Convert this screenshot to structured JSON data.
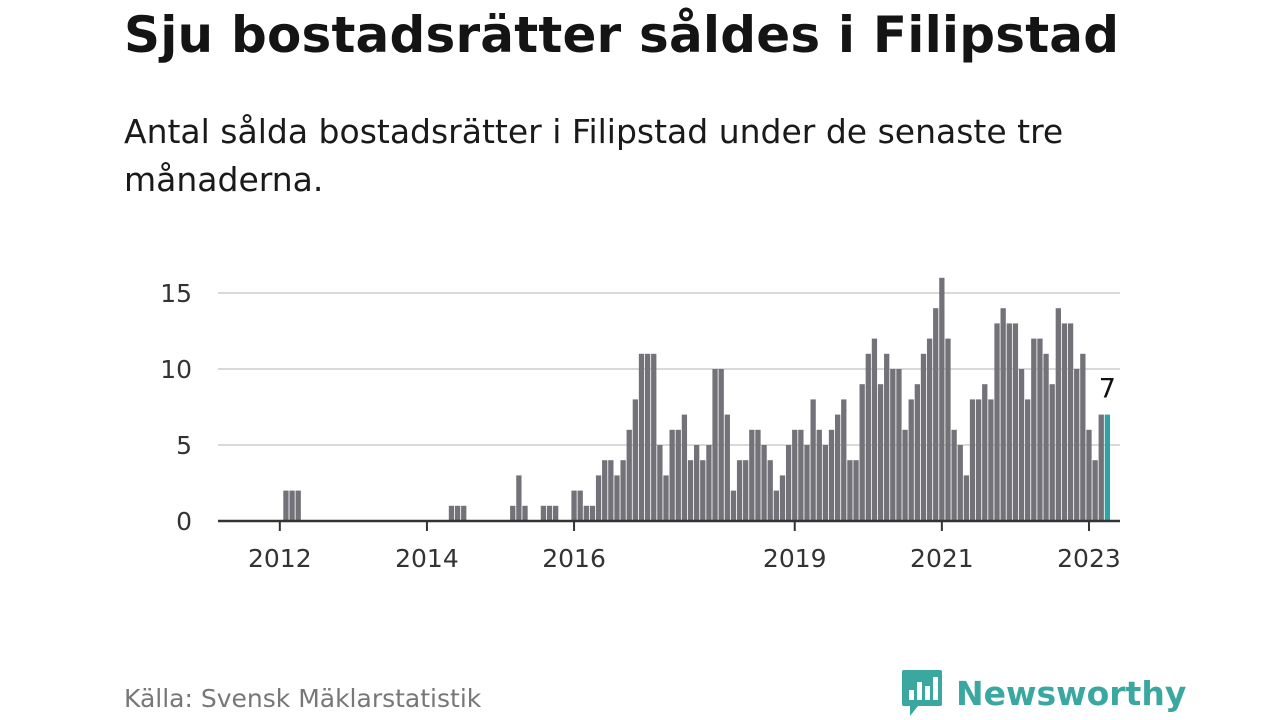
{
  "title": "Sju bostadsrätter såldes i Filipstad",
  "subtitle": "Antal sålda bostadsrätter i Filipstad under de senaste tre månaderna.",
  "source": "Källa: Svensk Mäklarstatistik",
  "brand": {
    "name": "Newsworthy",
    "logo_icon": "bar-chart-speech-bubble-icon",
    "color": "#3aa7a0"
  },
  "colors": {
    "bar": "#737278",
    "highlight": "#2fa3a8",
    "grid": "#d9d9d9",
    "axis": "#333333"
  },
  "chart_data": {
    "type": "bar",
    "title": "Sju bostadsrätter såldes i Filipstad",
    "xlabel": "",
    "ylabel": "",
    "ylim": [
      0,
      16
    ],
    "y_ticks": [
      0,
      5,
      10,
      15
    ],
    "grid": true,
    "x_ticks": [
      "2012",
      "2014",
      "2016",
      "2019",
      "2021",
      "2023"
    ],
    "x_tick_indices": [
      9,
      33,
      57,
      93,
      117,
      141
    ],
    "highlight_label": "7",
    "values": [
      0,
      0,
      0,
      0,
      0,
      0,
      0,
      0,
      0,
      0,
      2,
      2,
      2,
      0,
      0,
      0,
      0,
      0,
      0,
      0,
      0,
      0,
      0,
      0,
      0,
      0,
      0,
      0,
      0,
      0,
      0,
      0,
      0,
      0,
      0,
      0,
      0,
      1,
      1,
      1,
      0,
      0,
      0,
      0,
      0,
      0,
      0,
      1,
      3,
      1,
      0,
      0,
      1,
      1,
      1,
      0,
      0,
      2,
      2,
      1,
      1,
      3,
      4,
      4,
      3,
      4,
      6,
      8,
      11,
      11,
      11,
      5,
      3,
      6,
      6,
      7,
      4,
      5,
      4,
      5,
      10,
      10,
      7,
      2,
      4,
      4,
      6,
      6,
      5,
      4,
      2,
      3,
      5,
      6,
      6,
      5,
      8,
      6,
      5,
      6,
      7,
      8,
      4,
      4,
      9,
      11,
      12,
      9,
      11,
      10,
      10,
      6,
      8,
      9,
      11,
      12,
      14,
      16,
      12,
      6,
      5,
      3,
      8,
      8,
      9,
      8,
      13,
      14,
      13,
      13,
      10,
      8,
      12,
      12,
      11,
      9,
      14,
      13,
      13,
      10,
      11,
      6,
      4,
      7,
      7
    ],
    "highlight_index": 144
  }
}
